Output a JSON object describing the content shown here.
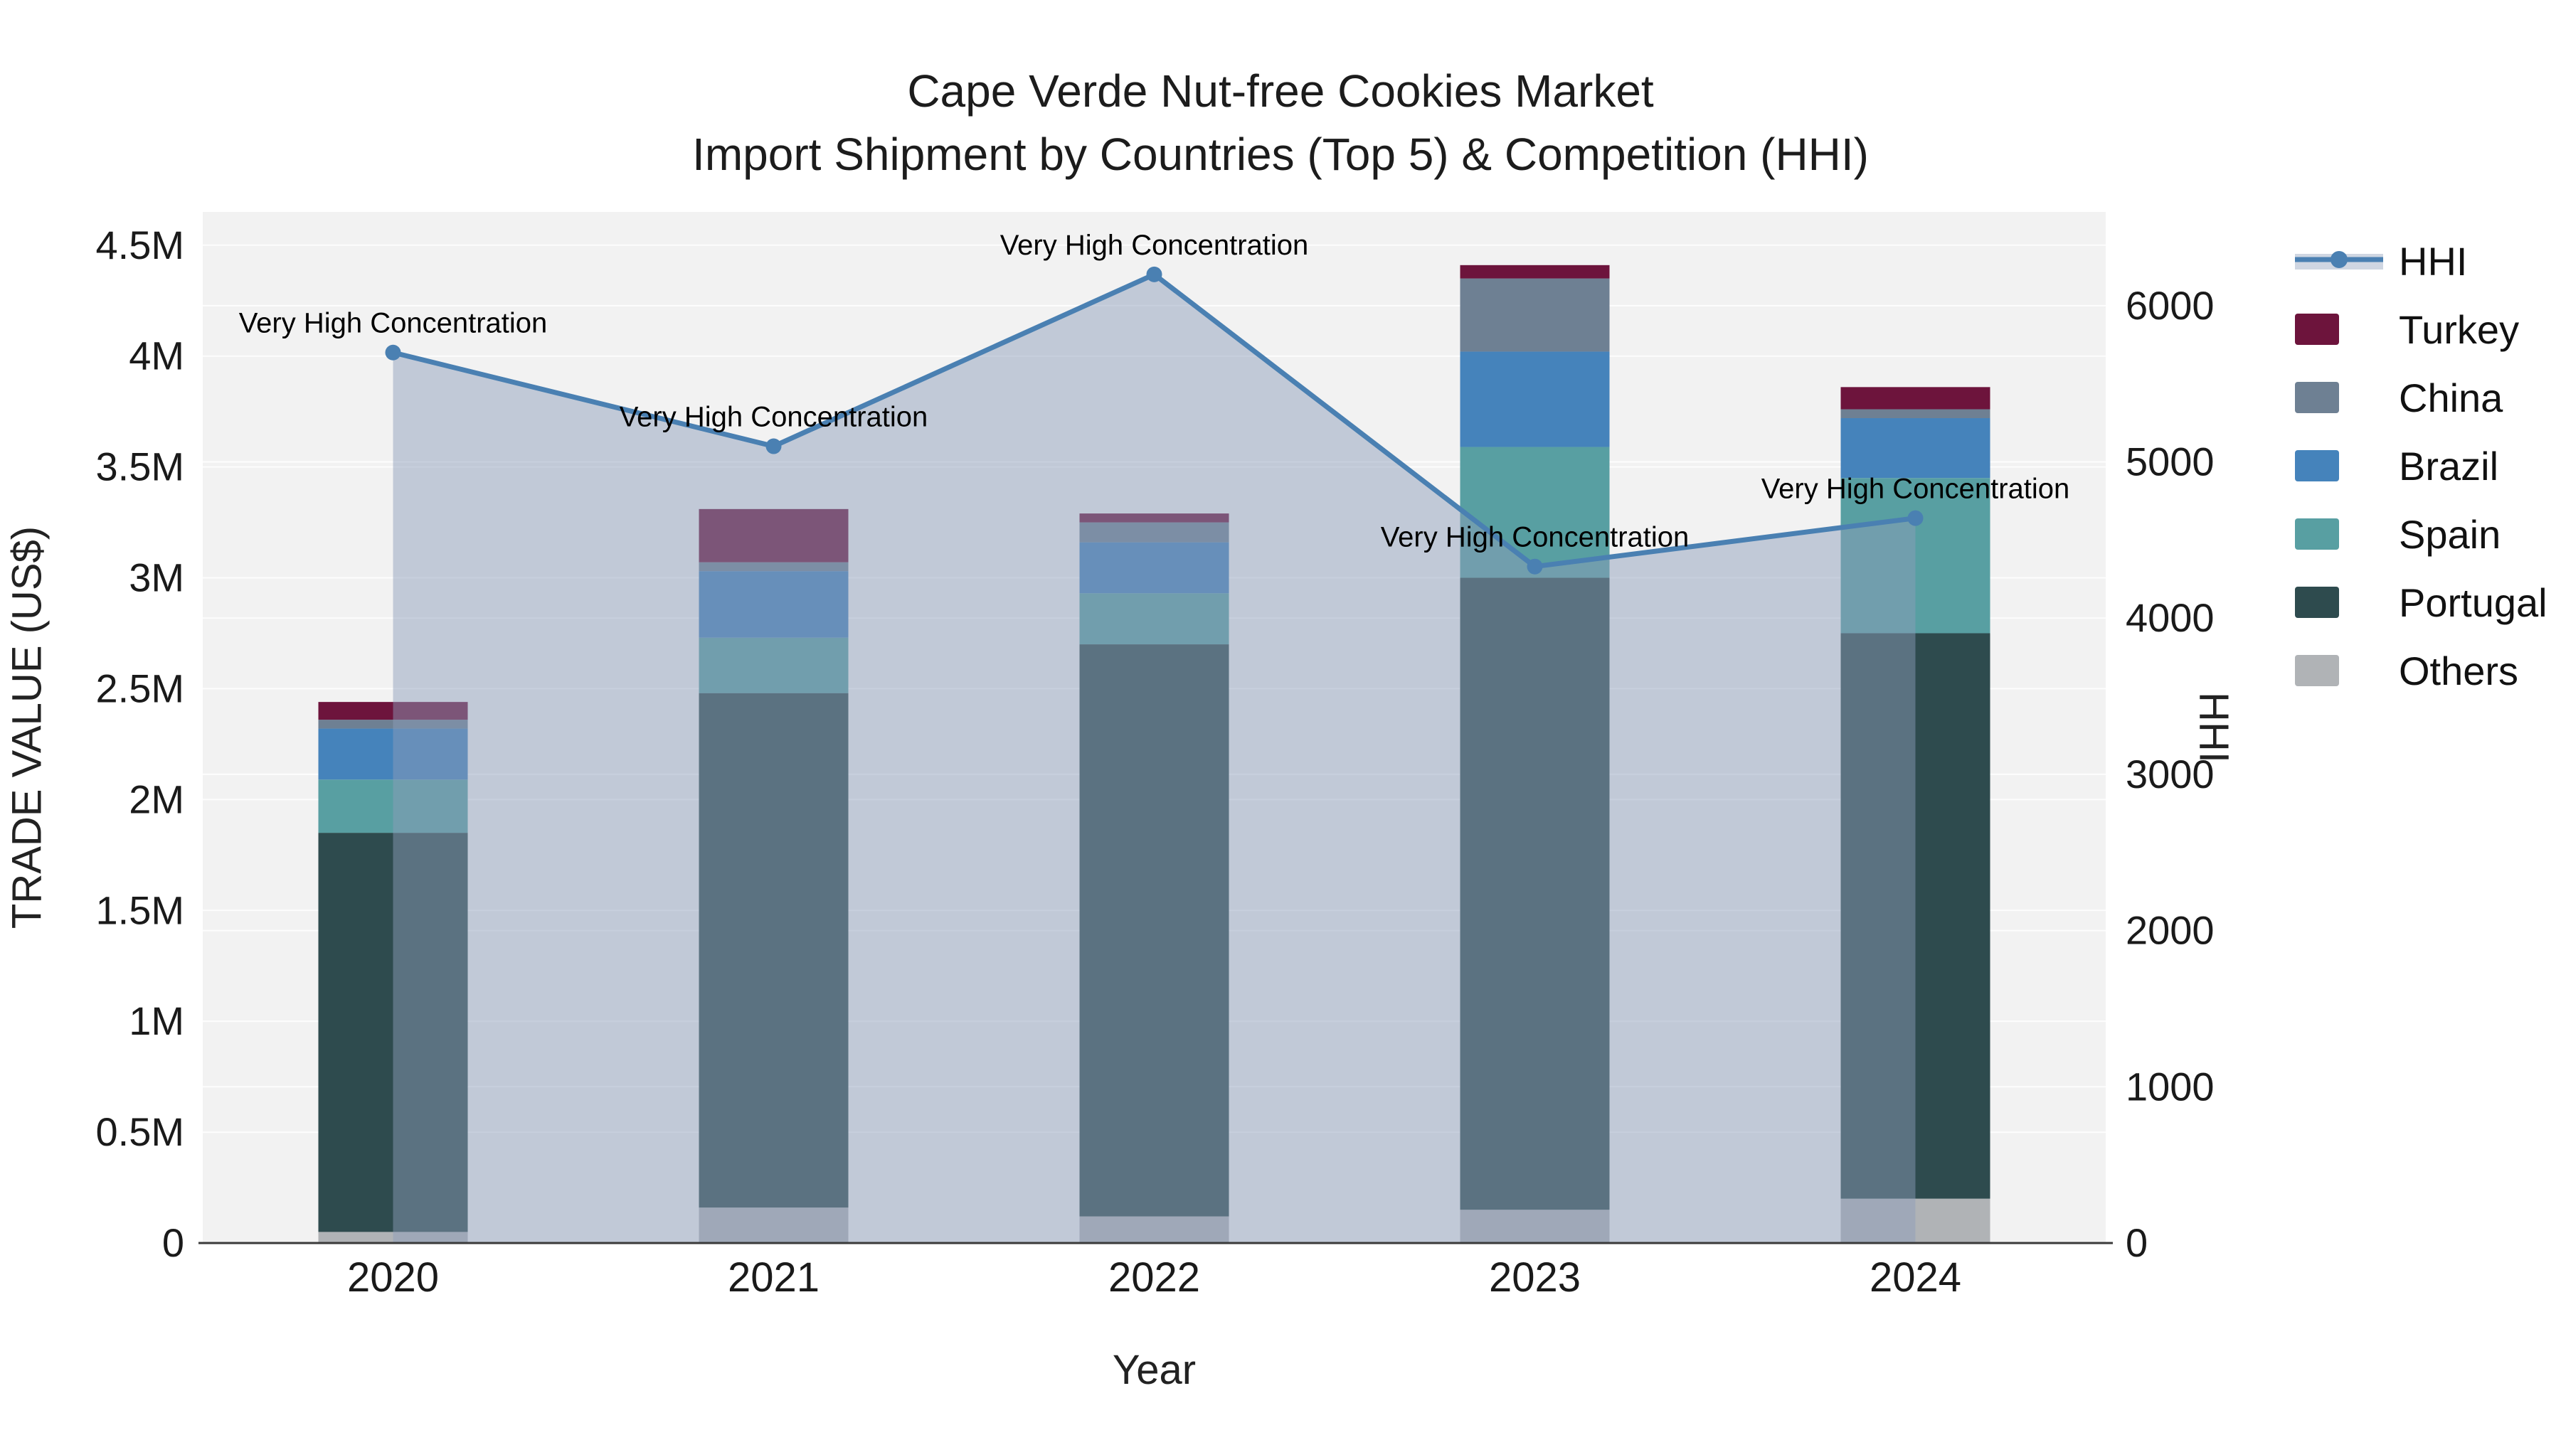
{
  "title": {
    "line1": "Cape Verde Nut-free Cookies Market",
    "line2": "Import Shipment by Countries (Top 5) & Competition (HHI)"
  },
  "axes": {
    "x_title": "Year",
    "y_left_title": "TRADE VALUE (US$)",
    "y_right_title": "HHI",
    "x_tick_labels": [
      "2020",
      "2021",
      "2022",
      "2023",
      "2024"
    ],
    "y_left_tick_labels": [
      "0",
      "0.5M",
      "1M",
      "1.5M",
      "2M",
      "2.5M",
      "3M",
      "3.5M",
      "4M",
      "4.5M"
    ],
    "y_left_tick_values": [
      0,
      500000,
      1000000,
      1500000,
      2000000,
      2500000,
      3000000,
      3500000,
      4000000,
      4500000
    ],
    "y_right_tick_labels": [
      "0",
      "1000",
      "2000",
      "3000",
      "4000",
      "5000",
      "6000"
    ],
    "y_right_tick_values": [
      0,
      1000,
      2000,
      3000,
      4000,
      5000,
      6000
    ]
  },
  "legend": {
    "items": [
      {
        "label": "HHI",
        "type": "line",
        "color": "#4a80b2",
        "band": "#cfd6e2"
      },
      {
        "label": "Turkey",
        "type": "swatch",
        "color": "#6d143c"
      },
      {
        "label": "China",
        "type": "swatch",
        "color": "#6e8093"
      },
      {
        "label": "Brazil",
        "type": "swatch",
        "color": "#4583bb"
      },
      {
        "label": "Spain",
        "type": "swatch",
        "color": "#589fa2"
      },
      {
        "label": "Portugal",
        "type": "swatch",
        "color": "#2e4b4e"
      },
      {
        "label": "Others",
        "type": "swatch",
        "color": "#b0b3b6"
      }
    ]
  },
  "colors": {
    "plot_background": "#f2f2f2",
    "gridline": "#ffffff",
    "axis_line": "#3a3a3a",
    "tick_text": "#1a1a1a",
    "annotation_text": "#000000",
    "hhi_line": "#4a80b2",
    "hhi_area_fill": "rgba(140,156,185,0.48)"
  },
  "chart_data": {
    "type": "bar",
    "stacked": true,
    "title": "Cape Verde Nut-free Cookies Market — Import Shipment by Countries (Top 5) & Competition (HHI)",
    "xlabel": "Year",
    "ylabel_left": "TRADE VALUE (US$)",
    "ylabel_right": "HHI",
    "categories": [
      "2020",
      "2021",
      "2022",
      "2023",
      "2024"
    ],
    "ylim_left": [
      0,
      4650000
    ],
    "ylim_right": [
      0,
      6600
    ],
    "grid": true,
    "legend_position": "right",
    "series": [
      {
        "name": "Others",
        "color": "#b0b3b6",
        "values": [
          50000,
          160000,
          120000,
          150000,
          200000
        ]
      },
      {
        "name": "Portugal",
        "color": "#2e4b4e",
        "values": [
          1800000,
          2320000,
          2580000,
          2850000,
          2550000
        ]
      },
      {
        "name": "Spain",
        "color": "#589fa2",
        "values": [
          240000,
          250000,
          230000,
          590000,
          700000
        ]
      },
      {
        "name": "Brazil",
        "color": "#4583bb",
        "values": [
          230000,
          300000,
          230000,
          430000,
          270000
        ]
      },
      {
        "name": "China",
        "color": "#6e8093",
        "values": [
          40000,
          40000,
          90000,
          330000,
          40000
        ]
      },
      {
        "name": "Turkey",
        "color": "#6d143c",
        "values": [
          80000,
          240000,
          40000,
          60000,
          100000
        ]
      }
    ],
    "bar_totals": [
      2440000,
      3310000,
      3290000,
      4410000,
      3860000
    ],
    "line_series": {
      "name": "HHI",
      "axis": "right",
      "color": "#4a80b2",
      "area_fill": "rgba(140,156,185,0.48)",
      "values": [
        5700,
        5100,
        6200,
        4330,
        4640
      ]
    },
    "annotations": [
      {
        "x": "2020",
        "text": "Very High Concentration"
      },
      {
        "x": "2021",
        "text": "Very High Concentration"
      },
      {
        "x": "2022",
        "text": "Very High Concentration"
      },
      {
        "x": "2023",
        "text": "Very High Concentration"
      },
      {
        "x": "2024",
        "text": "Very High Concentration"
      }
    ]
  }
}
